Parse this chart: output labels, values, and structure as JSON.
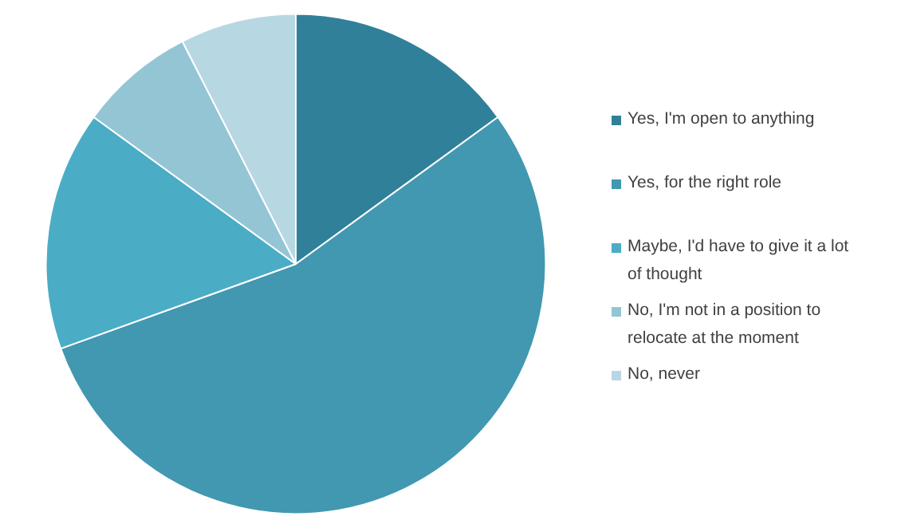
{
  "chart_data": {
    "type": "pie",
    "categories": [
      "Yes, I'm open to anything",
      "Yes, for the right role",
      "Maybe, I'd have to give it a lot of thought",
      "No, I'm not in a position to relocate at the moment",
      "No, never"
    ],
    "values": [
      15,
      54.5,
      15.5,
      7.5,
      7.5
    ],
    "colors": [
      "#31809a",
      "#4198b0",
      "#4bacc6",
      "#93c5d5",
      "#b7d7e3"
    ],
    "legend": "right"
  }
}
